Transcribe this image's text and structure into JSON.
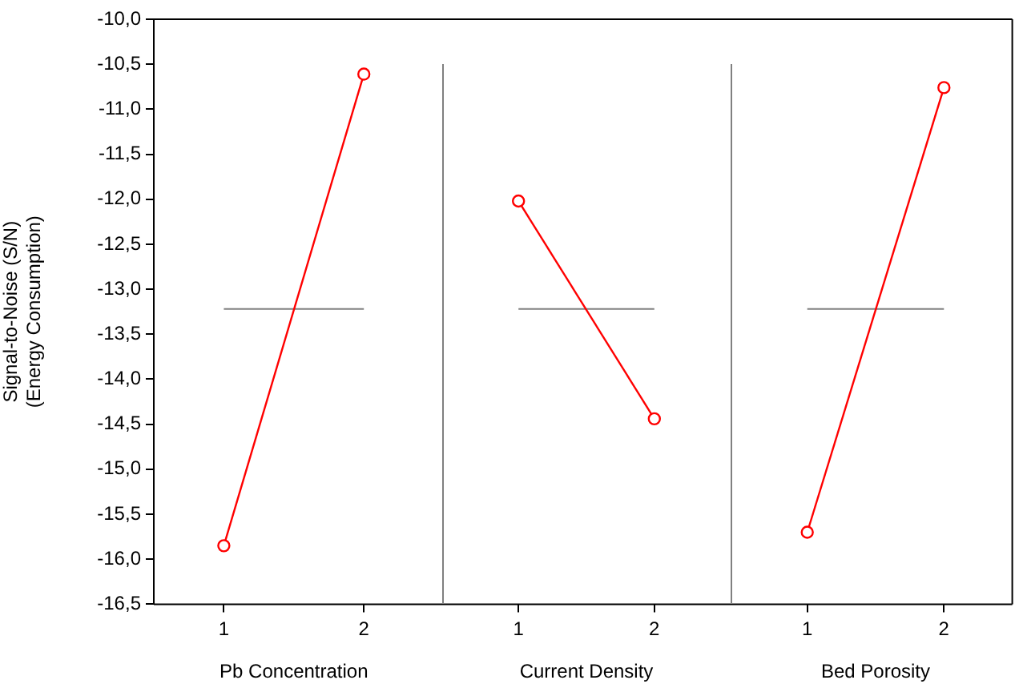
{
  "chart_data": [
    {
      "type": "line",
      "xlabel": "Pb Concentration",
      "ylabel": "Signal-to-Noise (S/N)\n(Energy Consumption)",
      "categories": [
        "1",
        "2"
      ],
      "series": [
        {
          "color": "#ff0000",
          "values": [
            -15.85,
            -10.61
          ]
        }
      ],
      "ylim": [
        -16.5,
        -10
      ],
      "yticks": [
        {
          "value": -16.5,
          "label": "-16,5"
        },
        {
          "value": -16,
          "label": "-16,0"
        },
        {
          "value": -15.5,
          "label": "-15,5"
        },
        {
          "value": -15,
          "label": "-15,0"
        },
        {
          "value": -14.5,
          "label": "-14,5"
        },
        {
          "value": -14,
          "label": "-14,0"
        },
        {
          "value": -13.5,
          "label": "-13,5"
        },
        {
          "value": -13,
          "label": "-13,0"
        },
        {
          "value": -12.5,
          "label": "-12,5"
        },
        {
          "value": -12,
          "label": "-12,0"
        },
        {
          "value": -11.5,
          "label": "-11,5"
        },
        {
          "value": -11,
          "label": "-11,0"
        },
        {
          "value": -10.5,
          "label": "-10,5"
        },
        {
          "value": -10,
          "label": "-10,0"
        }
      ],
      "ref_lines": [
        {
          "axis": "y",
          "value": -13.22,
          "color": "#808080"
        }
      ],
      "marker": "circle",
      "line_style": "solid",
      "grid": false,
      "legend": false
    },
    {
      "type": "line",
      "xlabel": "Current Density",
      "categories": [
        "1",
        "2"
      ],
      "series": [
        {
          "color": "#ff0000",
          "values": [
            -12.02,
            -14.44
          ]
        }
      ],
      "ylim": [
        -16.5,
        -10
      ],
      "ref_lines": [
        {
          "axis": "y",
          "value": -13.22,
          "color": "#808080"
        }
      ],
      "marker": "circle",
      "line_style": "solid",
      "grid": false,
      "legend": false,
      "tick_labels": "x"
    },
    {
      "type": "line",
      "xlabel": "Bed Porosity",
      "categories": [
        "1",
        "2"
      ],
      "series": [
        {
          "color": "#ff0000",
          "values": [
            -15.7,
            -10.76
          ]
        }
      ],
      "ylim": [
        -16.5,
        -10
      ],
      "ref_lines": [
        {
          "axis": "y",
          "value": -13.22,
          "color": "#808080"
        }
      ],
      "marker": "circle",
      "line_style": "solid",
      "grid": false,
      "legend": false,
      "tick_labels": "x"
    }
  ]
}
